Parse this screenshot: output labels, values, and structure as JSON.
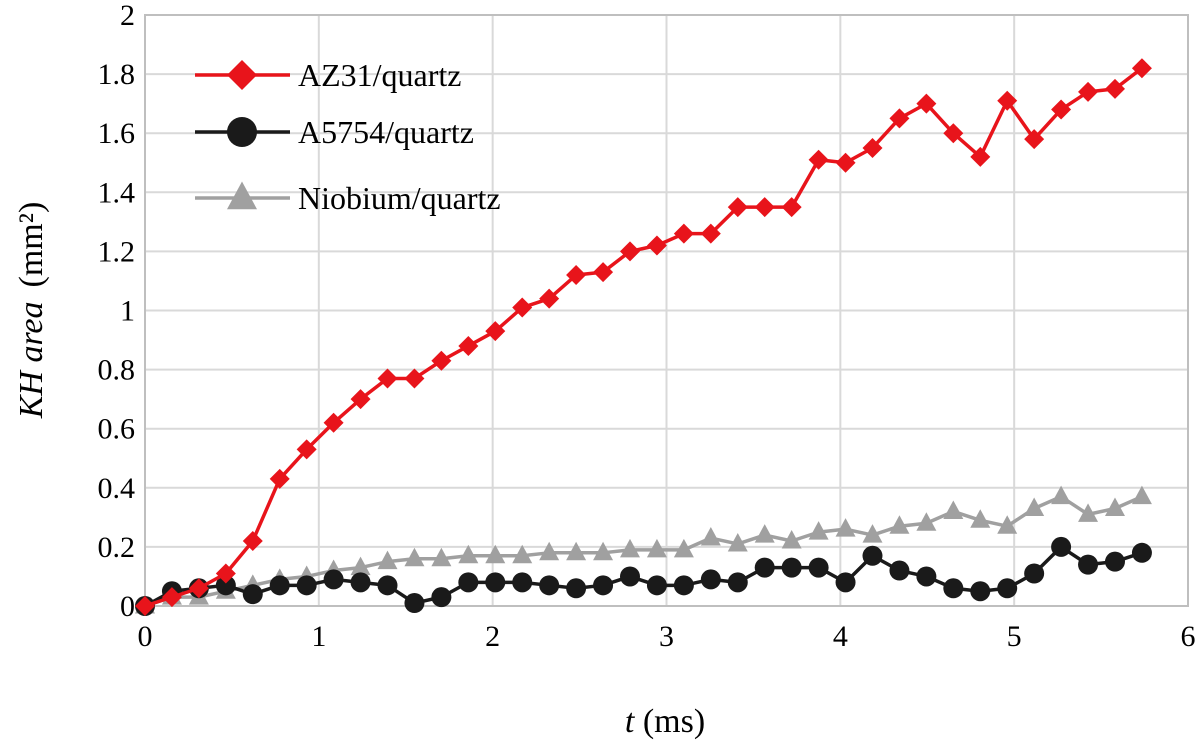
{
  "chart_data": {
    "type": "line",
    "xlabel_var": "t",
    "xlabel_unit": " (ms)",
    "ylabel_var": "KH area",
    "ylabel_unit": "(mm²)",
    "xlim": [
      0,
      6
    ],
    "ylim": [
      0,
      2
    ],
    "xticks": [
      "0",
      "1",
      "2",
      "3",
      "4",
      "5",
      "6"
    ],
    "yticks": [
      "0",
      "0.2",
      "0.4",
      "0.6",
      "0.8",
      "1",
      "1.2",
      "1.4",
      "1.6",
      "1.8",
      "2"
    ],
    "grid": true,
    "legend_position": "top-left",
    "x": [
      0,
      0.155,
      0.31,
      0.465,
      0.62,
      0.775,
      0.93,
      1.085,
      1.24,
      1.395,
      1.55,
      1.705,
      1.86,
      2.015,
      2.17,
      2.325,
      2.48,
      2.635,
      2.79,
      2.945,
      3.1,
      3.255,
      3.41,
      3.565,
      3.72,
      3.875,
      4.03,
      4.185,
      4.34,
      4.495,
      4.65,
      4.805,
      4.96,
      5.115,
      5.27,
      5.425,
      5.58,
      5.735
    ],
    "series": [
      {
        "name": "AZ31/quartz",
        "color": "#e8141b",
        "marker": "diamond",
        "values": [
          0.0,
          0.03,
          0.06,
          0.11,
          0.22,
          0.43,
          0.53,
          0.62,
          0.7,
          0.77,
          0.77,
          0.83,
          0.88,
          0.93,
          1.01,
          1.04,
          1.12,
          1.13,
          1.2,
          1.22,
          1.26,
          1.26,
          1.35,
          1.35,
          1.35,
          1.51,
          1.5,
          1.55,
          1.65,
          1.7,
          1.6,
          1.52,
          1.71,
          1.58,
          1.68,
          1.74,
          1.75,
          1.82
        ]
      },
      {
        "name": "A5754/quartz",
        "color": "#1a1a1a",
        "marker": "circle",
        "values": [
          0.0,
          0.05,
          0.06,
          0.07,
          0.04,
          0.07,
          0.07,
          0.09,
          0.08,
          0.07,
          0.01,
          0.03,
          0.08,
          0.08,
          0.08,
          0.07,
          0.06,
          0.07,
          0.1,
          0.07,
          0.07,
          0.09,
          0.08,
          0.13,
          0.13,
          0.13,
          0.08,
          0.17,
          0.12,
          0.1,
          0.06,
          0.05,
          0.06,
          0.11,
          0.2,
          0.14,
          0.15,
          0.18
        ]
      },
      {
        "name": "Niobium/quartz",
        "color": "#a0a0a0",
        "marker": "triangle",
        "values": [
          0.0,
          0.03,
          0.03,
          0.05,
          0.07,
          0.09,
          0.1,
          0.12,
          0.13,
          0.15,
          0.16,
          0.16,
          0.17,
          0.17,
          0.17,
          0.18,
          0.18,
          0.18,
          0.19,
          0.19,
          0.19,
          0.23,
          0.21,
          0.24,
          0.22,
          0.25,
          0.26,
          0.24,
          0.27,
          0.28,
          0.32,
          0.29,
          0.27,
          0.33,
          0.37,
          0.31,
          0.33,
          0.37
        ]
      }
    ]
  }
}
